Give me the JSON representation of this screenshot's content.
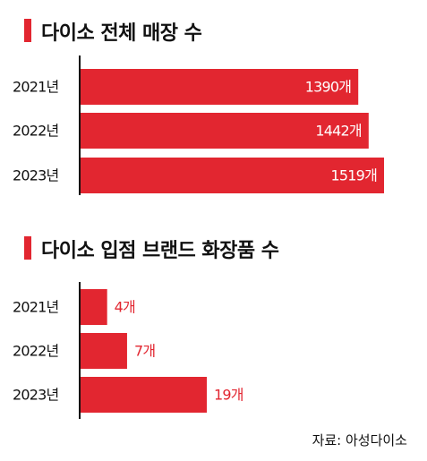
{
  "colors": {
    "accent": "#e22630",
    "text": "#111111",
    "value_inside": "#ffffff"
  },
  "source": "자료: 아성다이소",
  "chart_data": [
    {
      "type": "bar",
      "orientation": "horizontal",
      "title": "다이소 전체 매장 수",
      "categories": [
        "2021년",
        "2022년",
        "2023년"
      ],
      "values": [
        1390,
        1442,
        1519
      ],
      "value_labels": [
        "1390개",
        "1442개",
        "1519개"
      ],
      "value_label_position": "inside-end",
      "xlim": [
        0,
        1519
      ],
      "grid": false,
      "legend": "none"
    },
    {
      "type": "bar",
      "orientation": "horizontal",
      "title": "다이소 입점 브랜드 화장품 수",
      "categories": [
        "2021년",
        "2022년",
        "2023년"
      ],
      "values": [
        4,
        7,
        19
      ],
      "value_labels": [
        "4개",
        "7개",
        "19개"
      ],
      "value_label_position": "outside-end",
      "xlim": [
        0,
        19
      ],
      "grid": false,
      "legend": "none"
    }
  ]
}
